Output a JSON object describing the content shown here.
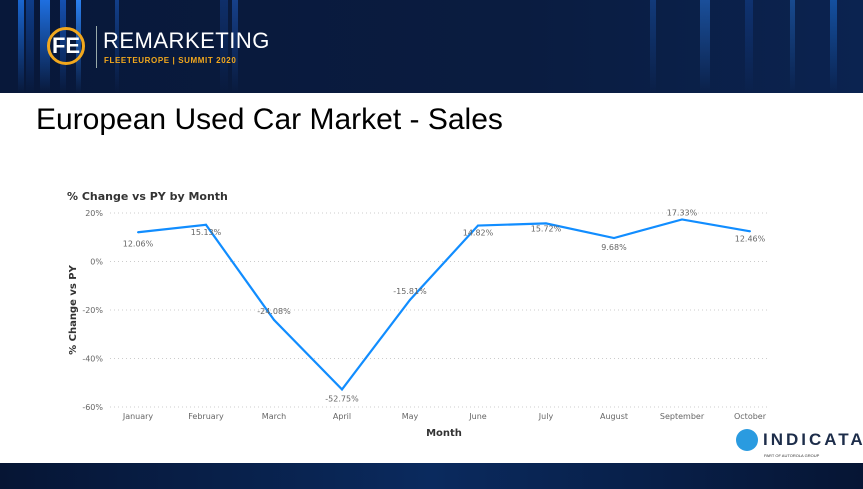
{
  "header": {
    "logo_letters": "FE",
    "brand": "REMARKETING",
    "subtitle": "FLEETEUROPE | SUMMIT 2020"
  },
  "slide_title": "European Used Car Market - Sales",
  "footer_logo": {
    "name": "INDICATA",
    "tagline": "PART OF AUTOROLA GROUP"
  },
  "colors": {
    "line": "#118dff",
    "header_bg": "#0a1c40",
    "accent": "#f2a81d"
  },
  "chart_data": {
    "type": "line",
    "title": "% Change vs PY by Month",
    "xlabel": "Month",
    "ylabel": "% Change vs PY",
    "categories": [
      "January",
      "February",
      "March",
      "April",
      "May",
      "June",
      "July",
      "August",
      "September",
      "October"
    ],
    "values": [
      12.06,
      15.13,
      -24.08,
      -52.75,
      -15.81,
      14.82,
      15.72,
      9.68,
      17.33,
      12.46
    ],
    "data_labels": [
      "12.06%",
      "15.13%",
      "-24.08%",
      "-52.75%",
      "-15.81%",
      "14.82%",
      "15.72%",
      "9.68%",
      "17.33%",
      "12.46%"
    ],
    "yticks": [
      "20%",
      "0%",
      "-20%",
      "-40%",
      "-60%"
    ],
    "ytick_values": [
      20,
      0,
      -20,
      -40,
      -60
    ],
    "ylim": [
      -60,
      20
    ],
    "grid": true
  }
}
